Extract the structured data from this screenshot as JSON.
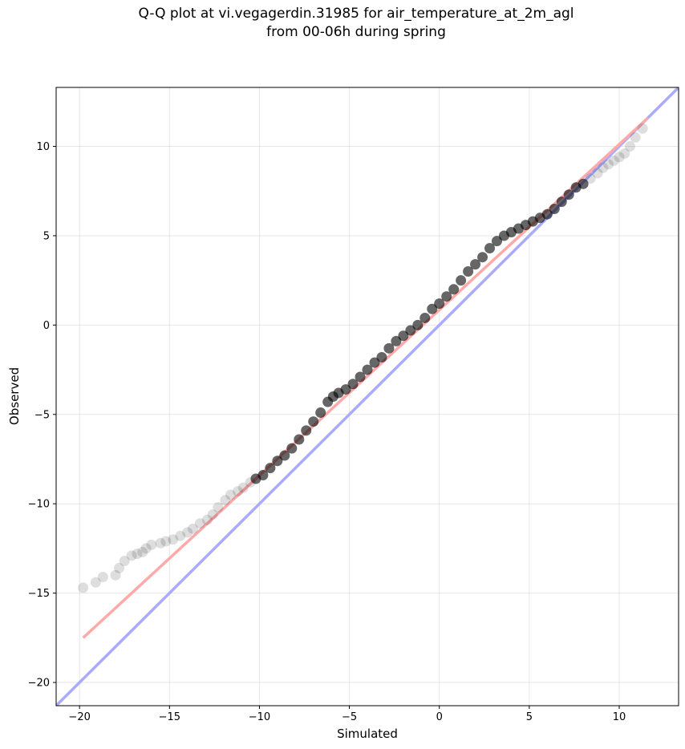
{
  "chart_data": {
    "type": "scatter",
    "title": "Q-Q plot at vi.vegagerdin.31985 for air_temperature_at_2m_agl",
    "subtitle": "from 00-06h during spring",
    "xlabel": "Simulated",
    "ylabel": "Observed",
    "xlim": [
      -21.3,
      13.3
    ],
    "ylim": [
      -21.3,
      13.3
    ],
    "xticks": [
      -20,
      -15,
      -10,
      -5,
      0,
      5,
      10
    ],
    "yticks": [
      -20,
      -15,
      -10,
      -5,
      0,
      5,
      10
    ],
    "xtick_labels": [
      "−20",
      "−15",
      "−10",
      "−5",
      "0",
      "5",
      "10"
    ],
    "ytick_labels": [
      "−20",
      "−15",
      "−10",
      "−5",
      "0",
      "5",
      "10"
    ],
    "grid": true,
    "reference_line": {
      "color": "#aaaaff",
      "x": [
        -21.3,
        13.3
      ],
      "y": [
        -21.3,
        13.3
      ]
    },
    "fit_line": {
      "color": "#ffaaaa",
      "x": [
        -19.8,
        11.6
      ],
      "y": [
        -17.5,
        11.6
      ]
    },
    "marker_color": "#000000",
    "points": {
      "x": [
        -19.8,
        -19.1,
        -18.7,
        -18.0,
        -17.8,
        -17.5,
        -17.1,
        -16.8,
        -16.5,
        -16.3,
        -16.0,
        -15.5,
        -15.2,
        -14.8,
        -14.4,
        -14.0,
        -13.7,
        -13.3,
        -12.9,
        -12.6,
        -12.3,
        -11.9,
        -11.6,
        -11.2,
        -10.9,
        -10.5,
        -10.2,
        -9.8,
        -9.4,
        -9.0,
        -8.6,
        -8.2,
        -7.8,
        -7.4,
        -7.0,
        -6.6,
        -6.2,
        -5.9,
        -5.6,
        -5.2,
        -4.8,
        -4.4,
        -4.0,
        -3.6,
        -3.2,
        -2.8,
        -2.4,
        -2.0,
        -1.6,
        -1.2,
        -0.8,
        -0.4,
        0.0,
        0.4,
        0.8,
        1.2,
        1.6,
        2.0,
        2.4,
        2.8,
        3.2,
        3.6,
        4.0,
        4.4,
        4.8,
        5.2,
        5.6,
        6.0,
        6.4,
        6.8,
        7.2,
        7.6,
        8.0,
        8.4,
        8.8,
        9.1,
        9.4,
        9.7,
        10.0,
        10.3,
        10.6,
        10.9,
        11.3
      ],
      "y": [
        -14.7,
        -14.4,
        -14.1,
        -14.0,
        -13.6,
        -13.2,
        -12.9,
        -12.8,
        -12.7,
        -12.5,
        -12.3,
        -12.2,
        -12.1,
        -12.0,
        -11.8,
        -11.6,
        -11.4,
        -11.1,
        -10.9,
        -10.6,
        -10.2,
        -9.8,
        -9.5,
        -9.3,
        -9.1,
        -8.8,
        -8.6,
        -8.4,
        -8.0,
        -7.6,
        -7.3,
        -6.9,
        -6.4,
        -5.9,
        -5.4,
        -4.9,
        -4.3,
        -4.0,
        -3.8,
        -3.6,
        -3.3,
        -2.9,
        -2.5,
        -2.1,
        -1.8,
        -1.3,
        -0.9,
        -0.6,
        -0.3,
        0.0,
        0.4,
        0.9,
        1.2,
        1.6,
        2.0,
        2.5,
        3.0,
        3.4,
        3.8,
        4.3,
        4.7,
        5.0,
        5.2,
        5.4,
        5.6,
        5.8,
        6.0,
        6.2,
        6.5,
        6.9,
        7.3,
        7.7,
        7.9,
        8.2,
        8.5,
        8.8,
        9.0,
        9.2,
        9.4,
        9.6,
        10.0,
        10.5,
        11.0
      ]
    }
  }
}
